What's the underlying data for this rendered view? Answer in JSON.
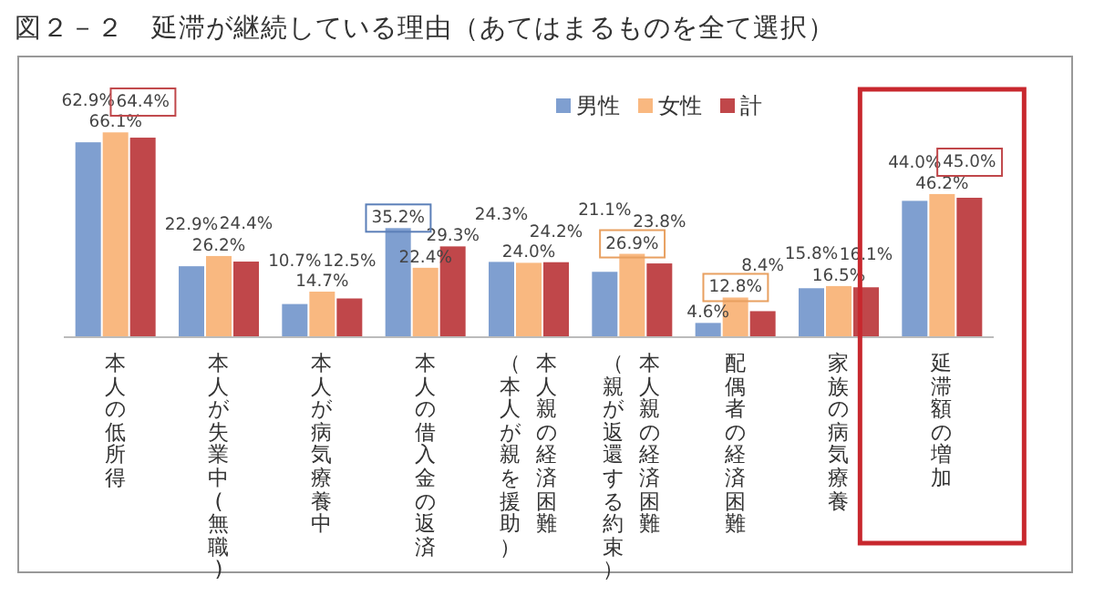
{
  "chart_data": {
    "type": "bar",
    "title": "図２－２　延滞が継続している理由（あてはまるものを全て選択）",
    "categories": [
      "本人の低所得",
      "本人が失業中(無職)",
      "本人が病気療養中",
      "本人の借入金の返済",
      "本人親の経済困難（本人が親を援助）",
      "本人親の経済困難（親が返還する約束）",
      "配偶者の経済困難",
      "家族の病気療養",
      "延滞額の増加"
    ],
    "series": [
      {
        "name": "男性",
        "color": "#7f9fd0",
        "values": [
          62.9,
          22.9,
          10.7,
          35.2,
          24.3,
          21.1,
          4.6,
          15.8,
          44.0
        ],
        "value_labels": [
          "62.9%",
          "22.9%",
          "10.7%",
          "35.2%",
          "24.3%",
          "21.1%",
          "4.6%",
          "15.8%",
          "44.0%"
        ]
      },
      {
        "name": "女性",
        "color": "#f9b880",
        "values": [
          66.1,
          26.2,
          14.7,
          22.4,
          24.0,
          26.9,
          12.8,
          16.5,
          46.2
        ],
        "value_labels": [
          "66.1%",
          "26.2%",
          "14.7%",
          "22.4%",
          "24.0%",
          "26.9%",
          "12.8%",
          "16.5%",
          "46.2%"
        ]
      },
      {
        "name": "計",
        "color": "#c0474a",
        "values": [
          64.4,
          24.4,
          12.5,
          29.3,
          24.2,
          23.8,
          8.4,
          16.1,
          45.0
        ],
        "value_labels": [
          "64.4%",
          "24.4%",
          "12.5%",
          "29.3%",
          "24.2%",
          "23.8%",
          "8.4%",
          "16.1%",
          "45.0%"
        ]
      }
    ],
    "legend": "top"
  }
}
